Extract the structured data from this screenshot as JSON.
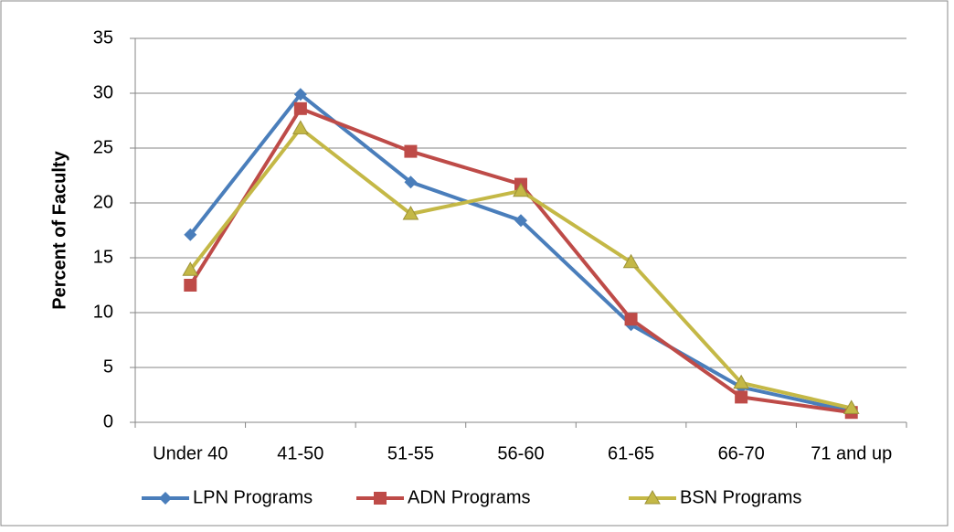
{
  "chart_data": {
    "type": "line",
    "y_label": "Percent of Faculty",
    "categories": [
      "Under 40",
      "41-50",
      "51-55",
      "56-60",
      "61-65",
      "66-70",
      "71 and up"
    ],
    "series": [
      {
        "name": "LPN Programs",
        "color": "#4a7ebb",
        "marker": "diamond",
        "values": [
          17.1,
          29.9,
          21.9,
          18.4,
          8.9,
          3.2,
          1.0
        ]
      },
      {
        "name": "ADN Programs",
        "color": "#be4b48",
        "marker": "square",
        "values": [
          12.5,
          28.6,
          24.7,
          21.7,
          9.4,
          2.3,
          0.9
        ]
      },
      {
        "name": "BSN Programs",
        "color": "#c4b846",
        "marker": "triangle",
        "values": [
          13.9,
          26.8,
          19.0,
          21.1,
          14.6,
          3.6,
          1.3
        ]
      }
    ],
    "ylim": [
      0,
      35
    ],
    "yticks": [
      0,
      5,
      10,
      15,
      20,
      25,
      30,
      35
    ],
    "grid": true,
    "legend": "bottom"
  }
}
